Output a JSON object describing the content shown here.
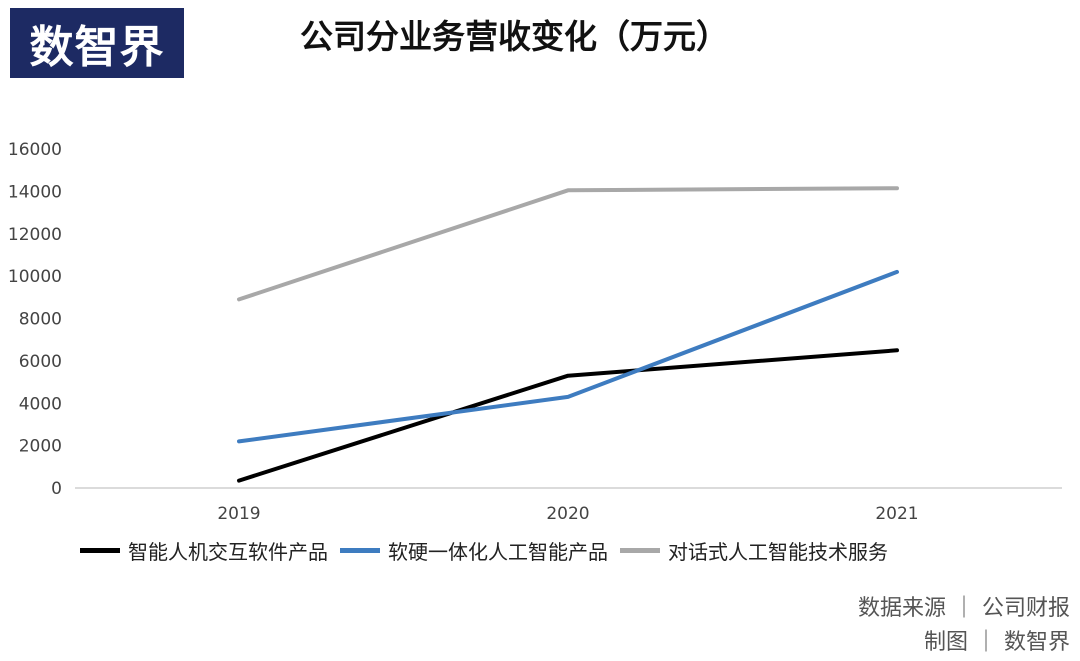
{
  "logo": {
    "text": "数智界"
  },
  "chart_data": {
    "type": "line",
    "title": "公司分业务营收变化（万元）",
    "categories": [
      "2019",
      "2020",
      "2021"
    ],
    "ylim": [
      0,
      16000
    ],
    "yticks": [
      "0",
      "2000",
      "4000",
      "6000",
      "8000",
      "10000",
      "12000",
      "14000",
      "16000"
    ],
    "grid": false,
    "legend_position": "bottom",
    "series": [
      {
        "name": "智能人机交互软件产品",
        "color": "#000000",
        "values": [
          350,
          5300,
          6500
        ]
      },
      {
        "name": "软硬一体化人工智能产品",
        "color": "#3e7cc0",
        "values": [
          2200,
          4300,
          10200
        ]
      },
      {
        "name": "对话式人工智能技术服务",
        "color": "#a8a8a8",
        "values": [
          8900,
          14050,
          14150
        ]
      }
    ]
  },
  "source": {
    "line1": "数据来源 ｜ 公司财报",
    "line2": "制图 ｜ 数智界"
  }
}
